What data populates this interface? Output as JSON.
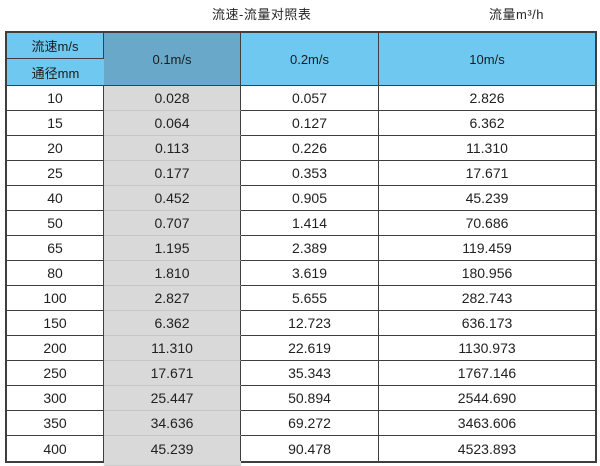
{
  "header": {
    "title": "流速-流量对照表",
    "unit_label": "流量m³/h"
  },
  "table": {
    "corner": {
      "top_label": "流速m/s",
      "bottom_label": "通径mm"
    },
    "velocity_headers": [
      "0.1m/s",
      "0.2m/s",
      "10m/s"
    ],
    "rows": [
      {
        "diameter": "10",
        "values": [
          "0.028",
          "0.057",
          "2.826"
        ]
      },
      {
        "diameter": "15",
        "values": [
          "0.064",
          "0.127",
          "6.362"
        ]
      },
      {
        "diameter": "20",
        "values": [
          "0.113",
          "0.226",
          "11.310"
        ]
      },
      {
        "diameter": "25",
        "values": [
          "0.177",
          "0.353",
          "17.671"
        ]
      },
      {
        "diameter": "40",
        "values": [
          "0.452",
          "0.905",
          "45.239"
        ]
      },
      {
        "diameter": "50",
        "values": [
          "0.707",
          "1.414",
          "70.686"
        ]
      },
      {
        "diameter": "65",
        "values": [
          "1.195",
          "2.389",
          "119.459"
        ]
      },
      {
        "diameter": "80",
        "values": [
          "1.810",
          "3.619",
          "180.956"
        ]
      },
      {
        "diameter": "100",
        "values": [
          "2.827",
          "5.655",
          "282.743"
        ]
      },
      {
        "diameter": "150",
        "values": [
          "6.362",
          "12.723",
          "636.173"
        ]
      },
      {
        "diameter": "200",
        "values": [
          "11.310",
          "22.619",
          "1130.973"
        ]
      },
      {
        "diameter": "250",
        "values": [
          "17.671",
          "35.343",
          "1767.146"
        ]
      },
      {
        "diameter": "300",
        "values": [
          "25.447",
          "50.894",
          "2544.690"
        ]
      },
      {
        "diameter": "350",
        "values": [
          "34.636",
          "69.272",
          "3463.606"
        ]
      },
      {
        "diameter": "400",
        "values": [
          "45.239",
          "90.478",
          "4523.893"
        ]
      }
    ]
  },
  "colors": {
    "header_blue": "#6FC8F0",
    "highlight_header_blue": "#69A8C8",
    "highlight_column_gray": "#D9D9D9",
    "border_dark": "#3F3F3F",
    "text": "#212121"
  }
}
